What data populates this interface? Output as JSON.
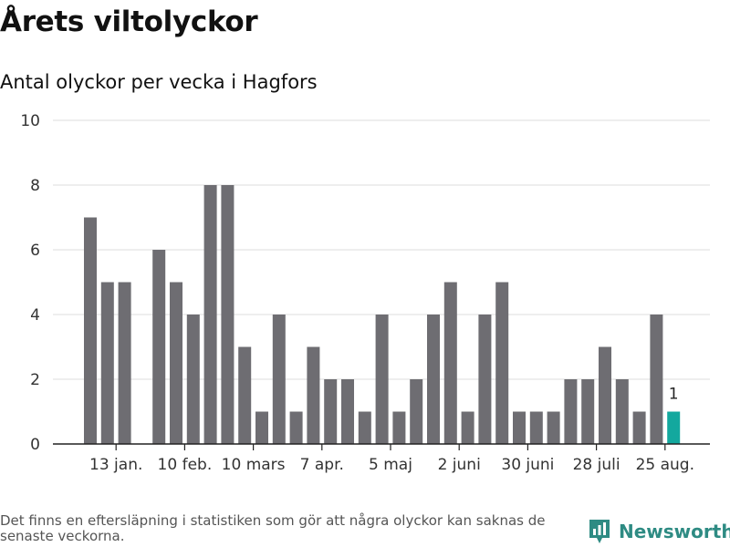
{
  "title": "Årets viltolyckor",
  "subtitle": "Antal olyckor per vecka i Hagfors",
  "footnote": "Det finns en eftersläpning i statistiken som gör att några olyckor kan saknas de senaste veckorna.",
  "brand": {
    "name": "Newsworthy",
    "color": "#2e8b83",
    "icon": "newsworthy-logo-icon"
  },
  "colors": {
    "bar": "#6e6d72",
    "highlight": "#13a89e",
    "grid": "#dcdcdc",
    "axis": "#222222"
  },
  "chart_data": {
    "type": "bar",
    "values": [
      7,
      5,
      5,
      0,
      6,
      5,
      4,
      8,
      8,
      3,
      1,
      4,
      1,
      3,
      2,
      2,
      1,
      4,
      1,
      2,
      4,
      5,
      1,
      4,
      5,
      1,
      1,
      1,
      2,
      2,
      3,
      2,
      1,
      4,
      1
    ],
    "highlight_index": 34,
    "highlight_label": "1",
    "xticks": [
      {
        "index": 1,
        "label": "13 jan."
      },
      {
        "index": 5,
        "label": "10 feb."
      },
      {
        "index": 9,
        "label": "10 mars"
      },
      {
        "index": 13,
        "label": "7 apr."
      },
      {
        "index": 17,
        "label": "5 maj"
      },
      {
        "index": 21,
        "label": "2 juni"
      },
      {
        "index": 25,
        "label": "30 juni"
      },
      {
        "index": 29,
        "label": "28 juli"
      },
      {
        "index": 33,
        "label": "25 aug."
      }
    ],
    "yticks": [
      0,
      2,
      4,
      6,
      8,
      10
    ],
    "ylim": [
      0,
      10
    ],
    "grid": true,
    "xlabel": "",
    "ylabel": ""
  }
}
